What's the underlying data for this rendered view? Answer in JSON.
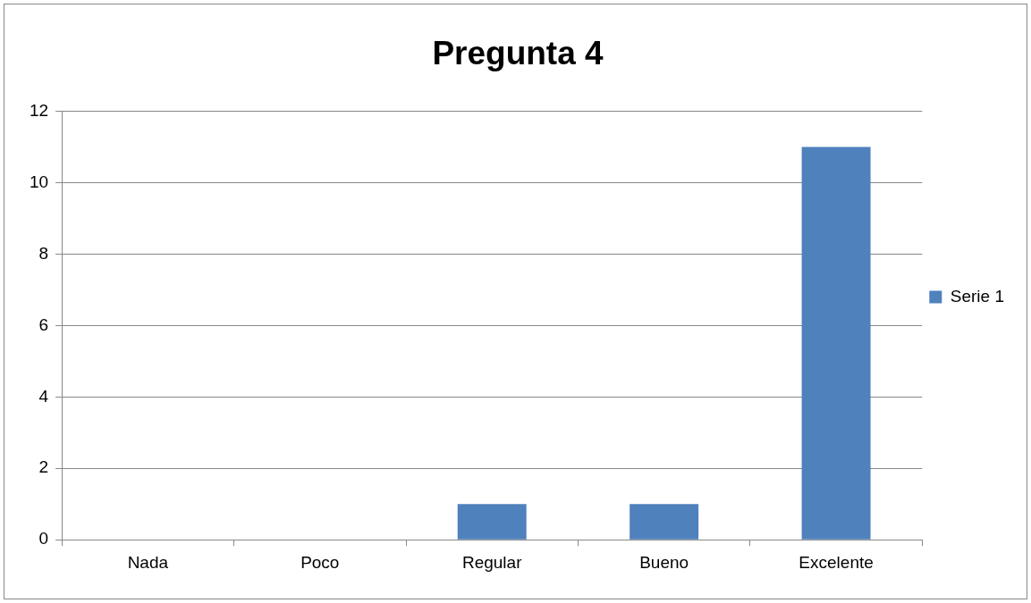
{
  "chart_data": {
    "type": "bar",
    "title": "Pregunta 4",
    "categories": [
      "Nada",
      "Poco",
      "Regular",
      "Bueno",
      "Excelente"
    ],
    "series": [
      {
        "name": "Serie 1",
        "color": "#4f81bd",
        "values": [
          0,
          0,
          1,
          1,
          11
        ]
      }
    ],
    "ylim": [
      0,
      12
    ],
    "yticks": [
      0,
      2,
      4,
      6,
      8,
      10,
      12
    ],
    "grid": "y",
    "legend": "right"
  }
}
